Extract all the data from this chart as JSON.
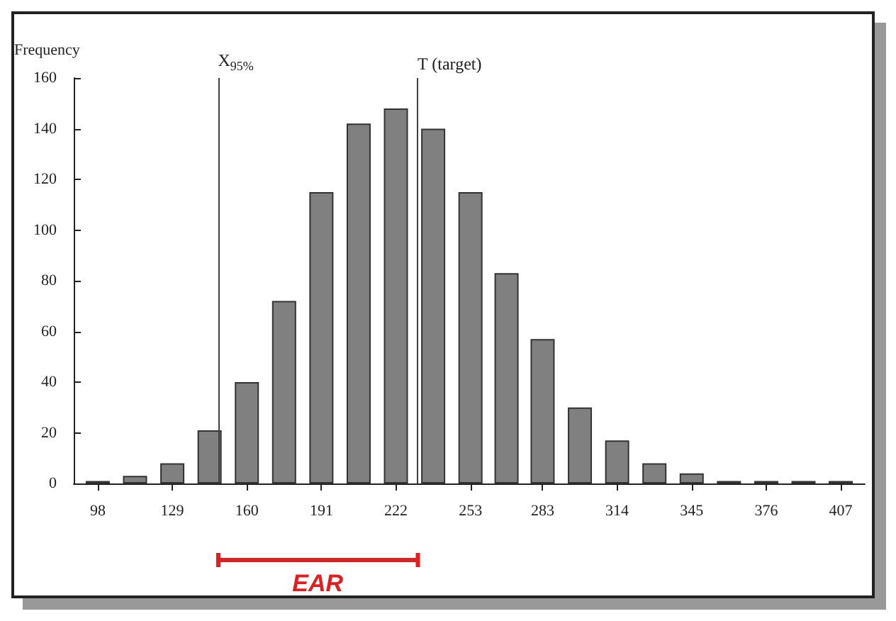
{
  "chart_data": {
    "type": "bar",
    "ylabel": "Frequency",
    "x": [
      98,
      113.5,
      129,
      144.5,
      160,
      175.5,
      191,
      206.5,
      222,
      237.5,
      253,
      268,
      283,
      298.5,
      314,
      329.5,
      345,
      360.5,
      376,
      391.5,
      407
    ],
    "values": [
      1,
      3,
      8,
      21,
      40,
      72,
      115,
      142,
      148,
      140,
      115,
      83,
      57,
      30,
      17,
      8,
      4,
      1,
      1,
      1,
      1
    ],
    "color": "#808080",
    "xlim": [
      88,
      417
    ],
    "xticks": [
      98,
      129,
      160,
      191,
      222,
      253,
      283,
      314,
      345,
      376,
      407
    ],
    "ylim": [
      0,
      160
    ],
    "yticks": [
      0,
      20,
      40,
      60,
      80,
      100,
      120,
      140,
      160
    ],
    "grid": false,
    "ref_lines": [
      {
        "axis": "x",
        "value": 148,
        "label": "X$_{95%}$",
        "color": "#404040"
      },
      {
        "axis": "x",
        "value": 231,
        "label": "T (target)",
        "color": "#404040"
      }
    ],
    "annotations": [
      "EAR"
    ]
  }
}
